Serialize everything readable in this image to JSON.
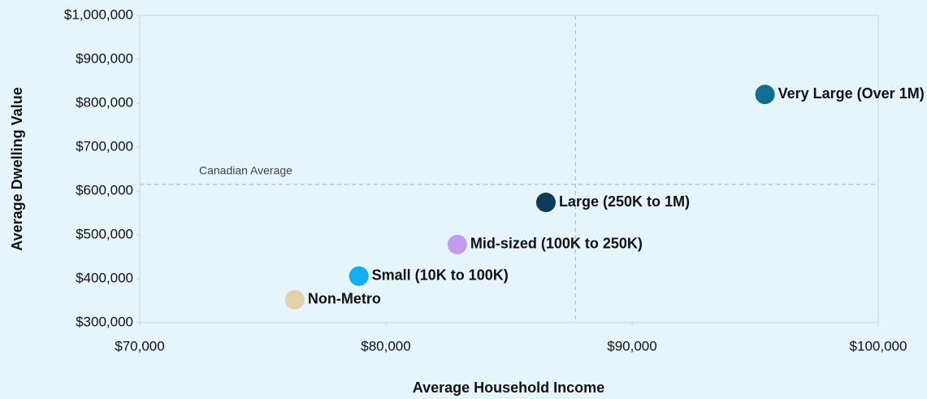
{
  "chart_data": {
    "type": "scatter",
    "x_label": "Average Household Income",
    "y_label": "Average Dwelling Value",
    "xlim": [
      70000,
      100000
    ],
    "ylim": [
      300000,
      1000000
    ],
    "xticks": [
      {
        "value": 70000,
        "label": "$70,000"
      },
      {
        "value": 80000,
        "label": "$80,000"
      },
      {
        "value": 90000,
        "label": "$90,000"
      },
      {
        "value": 100000,
        "label": "$100,000"
      }
    ],
    "yticks": [
      {
        "value": 300000,
        "label": "$300,000"
      },
      {
        "value": 400000,
        "label": "$400,000"
      },
      {
        "value": 500000,
        "label": "$500,000"
      },
      {
        "value": 600000,
        "label": "$600,000"
      },
      {
        "value": 700000,
        "label": "$700,000"
      },
      {
        "value": 800000,
        "label": "$800,000"
      },
      {
        "value": 900000,
        "label": "$900,000"
      },
      {
        "value": 1000000,
        "label": "$1,000,000"
      }
    ],
    "reference": {
      "label": "Canadian Average",
      "x": 87700,
      "y": 615000
    },
    "points": [
      {
        "label": "Very Large (Over 1M)",
        "color": "#0e6e96",
        "x": 95400,
        "y": 820000
      },
      {
        "label": "Large (250K to 1M)",
        "color": "#0d3d56",
        "x": 86500,
        "y": 574000
      },
      {
        "label": "Mid-sized (100K to 250K)",
        "color": "#c29bf0",
        "x": 82900,
        "y": 478000
      },
      {
        "label": "Small (10K to 100K)",
        "color": "#12aef0",
        "x": 78900,
        "y": 406000
      },
      {
        "label": "Non-Metro",
        "color": "#e3d1a8",
        "x": 76300,
        "y": 352000
      }
    ]
  }
}
